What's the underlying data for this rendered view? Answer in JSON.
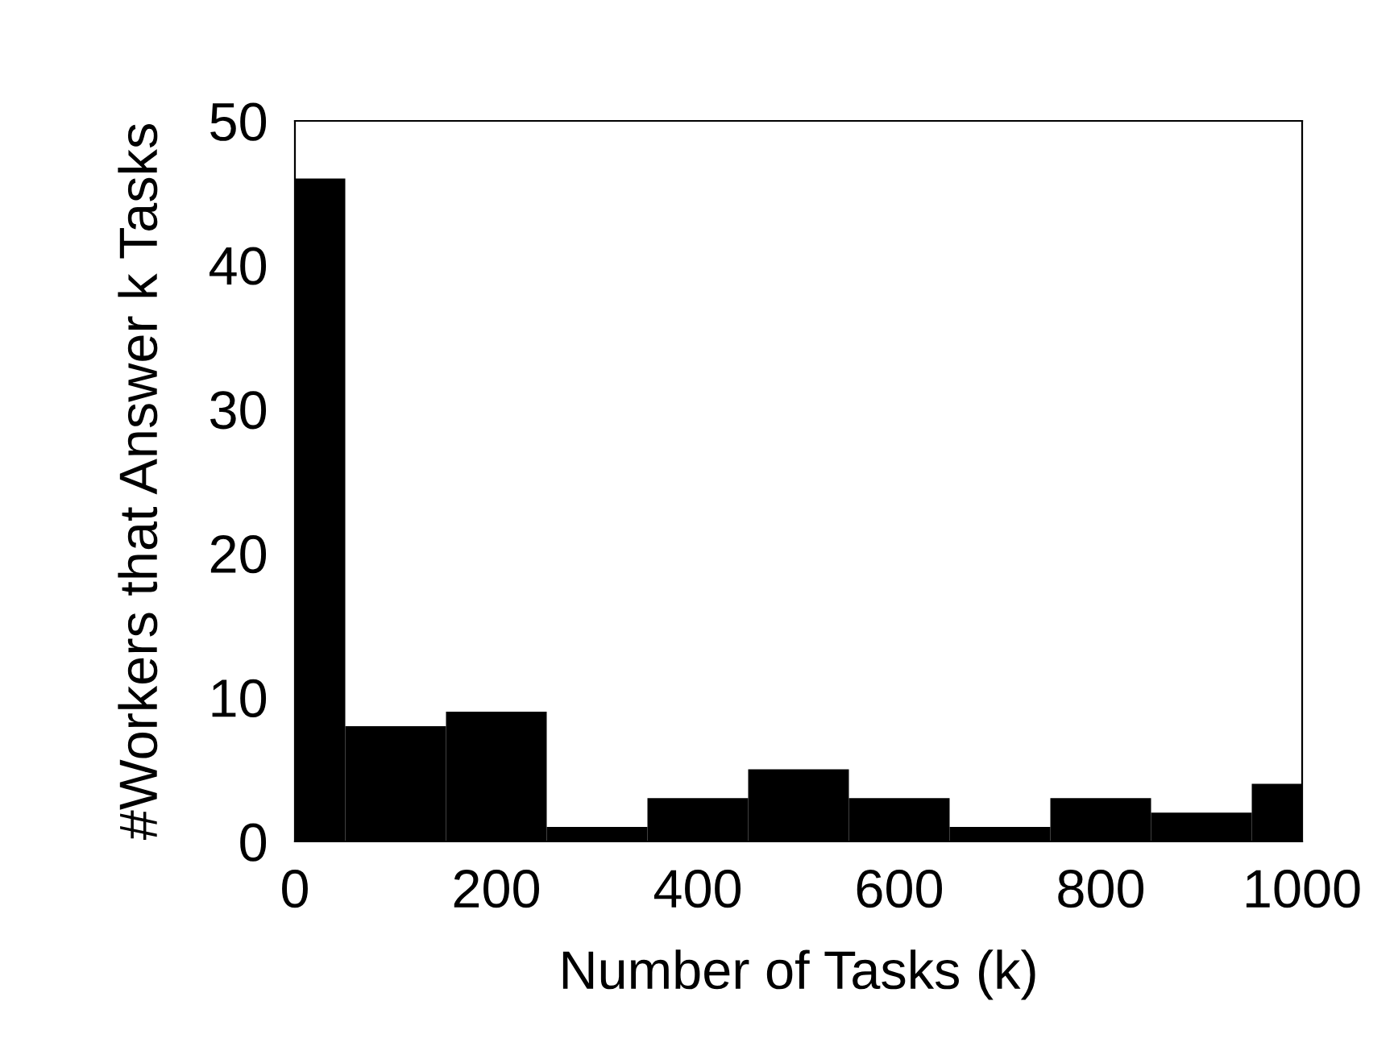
{
  "chart_data": {
    "type": "histogram",
    "xlabel": "Number of Tasks (k)",
    "ylabel": "#Workers that Answer k Tasks",
    "bins": [
      0,
      50,
      150,
      250,
      350,
      450,
      550,
      650,
      750,
      850,
      950,
      1000
    ],
    "values": [
      46,
      8,
      9,
      1,
      3,
      5,
      3,
      1,
      3,
      2,
      4
    ],
    "color": "#000000",
    "xlim": [
      0,
      1000
    ],
    "xticks": [
      0,
      200,
      400,
      600,
      800,
      1000
    ],
    "ylim": [
      0,
      50
    ],
    "yticks": [
      0,
      10,
      20,
      30,
      40,
      50
    ],
    "grid": false
  }
}
